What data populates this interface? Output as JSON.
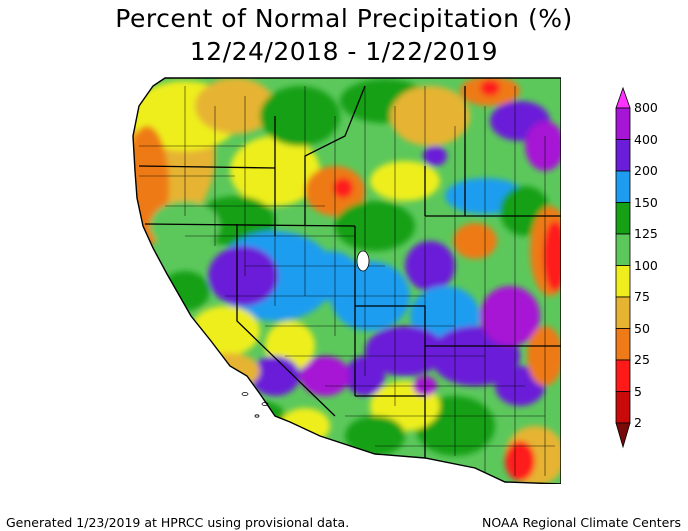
{
  "title": "Percent of Normal Precipitation (%)",
  "subtitle": "12/24/2018 - 1/22/2019",
  "legend": [
    {
      "label": "800",
      "color": "#ff33ff"
    },
    {
      "label": "400",
      "color": "#a616d4"
    },
    {
      "label": "200",
      "color": "#6a1ed8"
    },
    {
      "label": "150",
      "color": "#1e9df0"
    },
    {
      "label": "125",
      "color": "#16a016"
    },
    {
      "label": "100",
      "color": "#5cc85c"
    },
    {
      "label": "75",
      "color": "#eeee1e"
    },
    {
      "label": "50",
      "color": "#e6b432"
    },
    {
      "label": "25",
      "color": "#ee7a18"
    },
    {
      "label": "5",
      "color": "#ff1a1a"
    },
    {
      "label": "2",
      "color": "#c80a0a"
    }
  ],
  "legend_bottom_color": "#780a0a",
  "footer_left": "Generated 1/23/2019 at HPRCC using provisional data.",
  "footer_right": "NOAA Regional Climate Centers"
}
